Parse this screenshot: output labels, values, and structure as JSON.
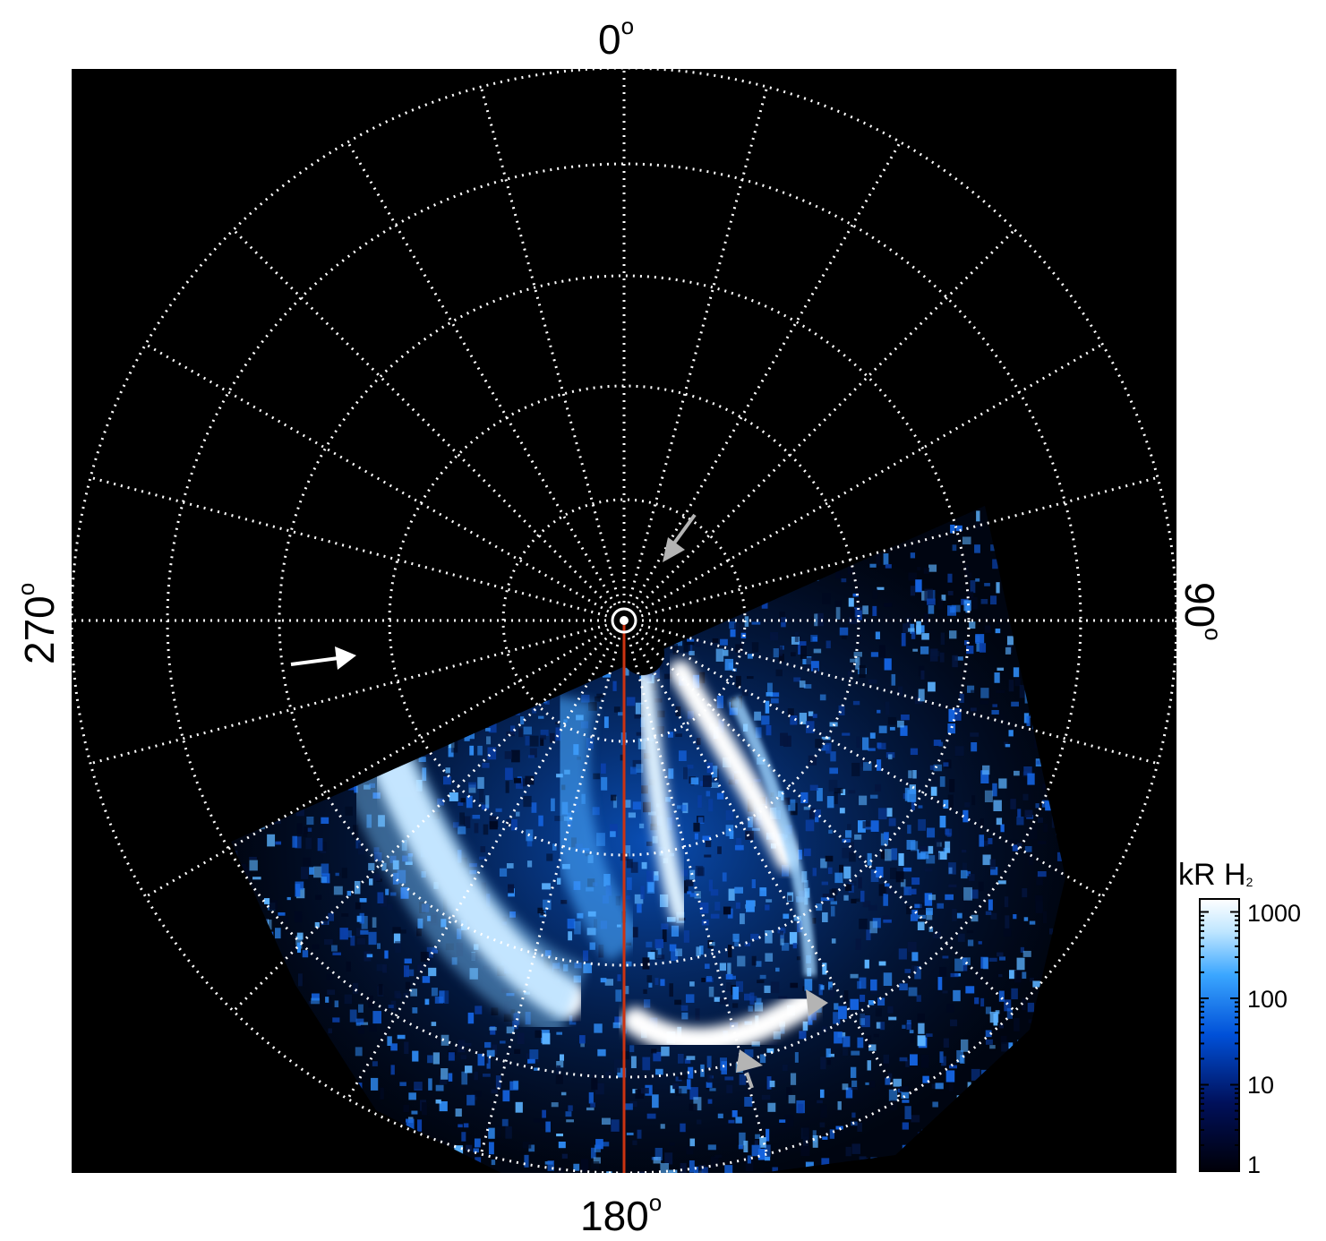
{
  "labels": {
    "top": "0",
    "right": "90",
    "bottom": "180",
    "left": "270",
    "degree_symbol": "o"
  },
  "colorbar": {
    "title": "kR H",
    "title_sub": "2",
    "ticks": [
      "1000",
      "100",
      "10",
      "1"
    ],
    "colors": [
      "#000008",
      "#00105a",
      "#0050d8",
      "#3aa6ff",
      "#bfe6ff",
      "#ffffff"
    ]
  },
  "image": {
    "background": "#000000",
    "grid_color": "#ffffff",
    "meridian_color": "#cc3311",
    "arrows": [
      {
        "color": "#ffffff",
        "name": "white-arrow"
      },
      {
        "color": "#b4b4b4",
        "name": "gray-arrow-center"
      },
      {
        "color": "#b4b4b4",
        "name": "gray-arrow-right"
      },
      {
        "color": "#b4b4b4",
        "name": "gray-arrow-bottom"
      }
    ]
  }
}
